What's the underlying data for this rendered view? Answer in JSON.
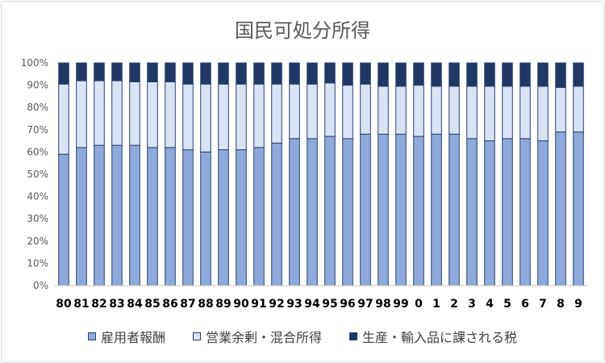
{
  "chart_data": {
    "type": "bar",
    "stacked": true,
    "title": "国民可処分所得",
    "categories": [
      "80",
      "81",
      "82",
      "83",
      "84",
      "85",
      "86",
      "87",
      "88",
      "89",
      "90",
      "91",
      "92",
      "93",
      "94",
      "95",
      "96",
      "97",
      "98",
      "99",
      "0",
      "1",
      "2",
      "3",
      "4",
      "5",
      "6",
      "7",
      "8",
      "9"
    ],
    "series": [
      {
        "name": "雇用者報酬",
        "color": "#8eaadb",
        "values": [
          59,
          62,
          63,
          63,
          63,
          62,
          62,
          61,
          60,
          61,
          61,
          62,
          64,
          66,
          66,
          67,
          66,
          68,
          68,
          68,
          67,
          68,
          68,
          66,
          65,
          66,
          66,
          65,
          69,
          69
        ]
      },
      {
        "name": "営業余剰・混合所得",
        "color": "#dae3f3",
        "values": [
          31.5,
          30,
          29,
          29,
          28.5,
          29.5,
          29.5,
          29.5,
          30.5,
          29.5,
          29.5,
          28.5,
          26.5,
          24.5,
          24.5,
          24,
          24,
          22.5,
          21.5,
          21.5,
          23,
          21.5,
          21.5,
          23.5,
          24.5,
          23.5,
          23.5,
          24.5,
          20,
          20.5
        ]
      },
      {
        "name": "生産・輸入品に課される税",
        "color": "#1f3864",
        "values": [
          9.5,
          8,
          8,
          8,
          8.5,
          8.5,
          8.5,
          9.5,
          9.5,
          9.5,
          9.5,
          9.5,
          9.5,
          9.5,
          9.5,
          9,
          10,
          9.5,
          10.5,
          10.5,
          10,
          10.5,
          10.5,
          10.5,
          10.5,
          10.5,
          10.5,
          10.5,
          11,
          10.5
        ]
      }
    ],
    "ylim": [
      0,
      100
    ],
    "yticks": [
      "0%",
      "10%",
      "20%",
      "30%",
      "40%",
      "50%",
      "60%",
      "70%",
      "80%",
      "90%",
      "100%"
    ],
    "grid": false,
    "legend": "bottom"
  }
}
